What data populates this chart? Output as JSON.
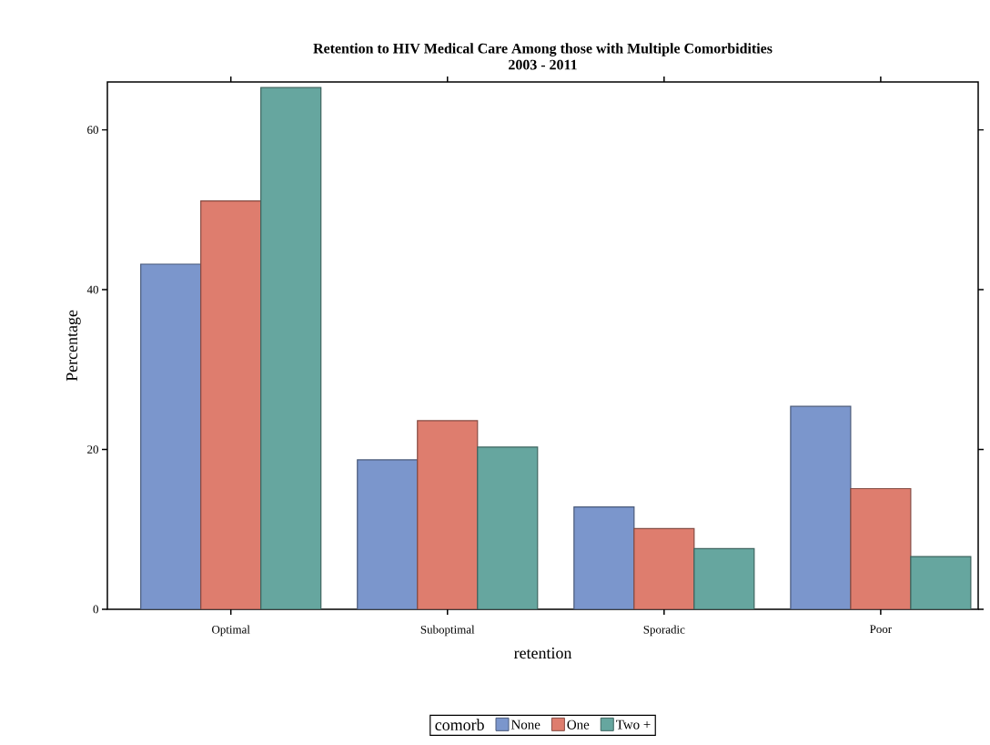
{
  "chart_data": {
    "type": "bar",
    "title": "Retention to HIV Medical Care Among those with Multiple Comorbidities",
    "subtitle": "2003 - 2011",
    "xlabel": "retention",
    "ylabel": "Percentage",
    "legend_title": "comorb",
    "categories": [
      "Optimal",
      "Suboptimal",
      "Sporadic",
      "Poor"
    ],
    "series": [
      {
        "name": "None",
        "color": "#7b96cc",
        "values": [
          43.2,
          18.7,
          12.8,
          25.4
        ]
      },
      {
        "name": "One",
        "color": "#de7d6e",
        "values": [
          51.1,
          23.6,
          10.1,
          15.1
        ]
      },
      {
        "name": "Two +",
        "color": "#66a69f",
        "values": [
          65.3,
          20.3,
          7.6,
          6.6
        ]
      }
    ],
    "ylim": [
      0,
      66
    ],
    "yticks": [
      0,
      20,
      40,
      60
    ],
    "grid": false,
    "legend": "bottom"
  }
}
